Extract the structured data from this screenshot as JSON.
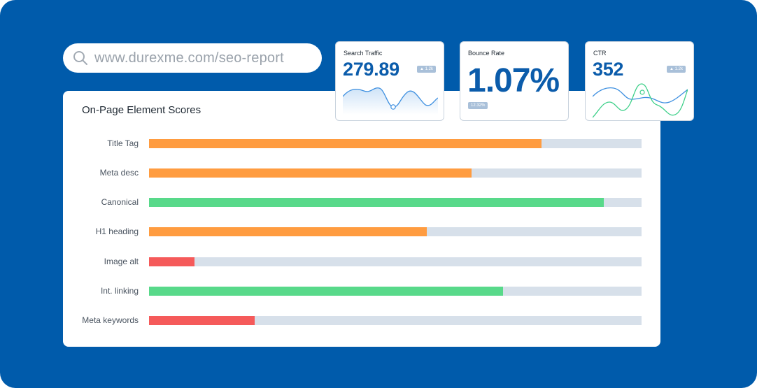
{
  "url_bar": {
    "url": "www.durexme.com/seo-report"
  },
  "panel": {
    "title": "On-Page Element Scores",
    "rows": [
      {
        "label": "Title Tag",
        "value": 0.797,
        "color": "#ff9c40"
      },
      {
        "label": "Meta desc",
        "value": 0.655,
        "color": "#ff9c40"
      },
      {
        "label": "Canonical",
        "value": 0.923,
        "color": "#58d98a"
      },
      {
        "label": "H1 heading",
        "value": 0.564,
        "color": "#ff9c40"
      },
      {
        "label": "Image alt",
        "value": 0.092,
        "color": "#f55a5a"
      },
      {
        "label": "Int. linking",
        "value": 0.719,
        "color": "#58d98a"
      },
      {
        "label": "Meta keywords",
        "value": 0.214,
        "color": "#f55a5a"
      }
    ]
  },
  "cards": {
    "search_traffic": {
      "title": "Search Traffic",
      "value": "279.89",
      "badge": "▲ 1.2k"
    },
    "bounce_rate": {
      "title": "Bounce Rate",
      "value": "1.07%",
      "badge": "12.32%"
    },
    "ctr": {
      "title": "CTR",
      "value": "352",
      "badge": "▲ 1.2k"
    }
  },
  "colors": {
    "background": "#005bab",
    "accent": "#0b5cab",
    "track": "#d7e0ea"
  }
}
